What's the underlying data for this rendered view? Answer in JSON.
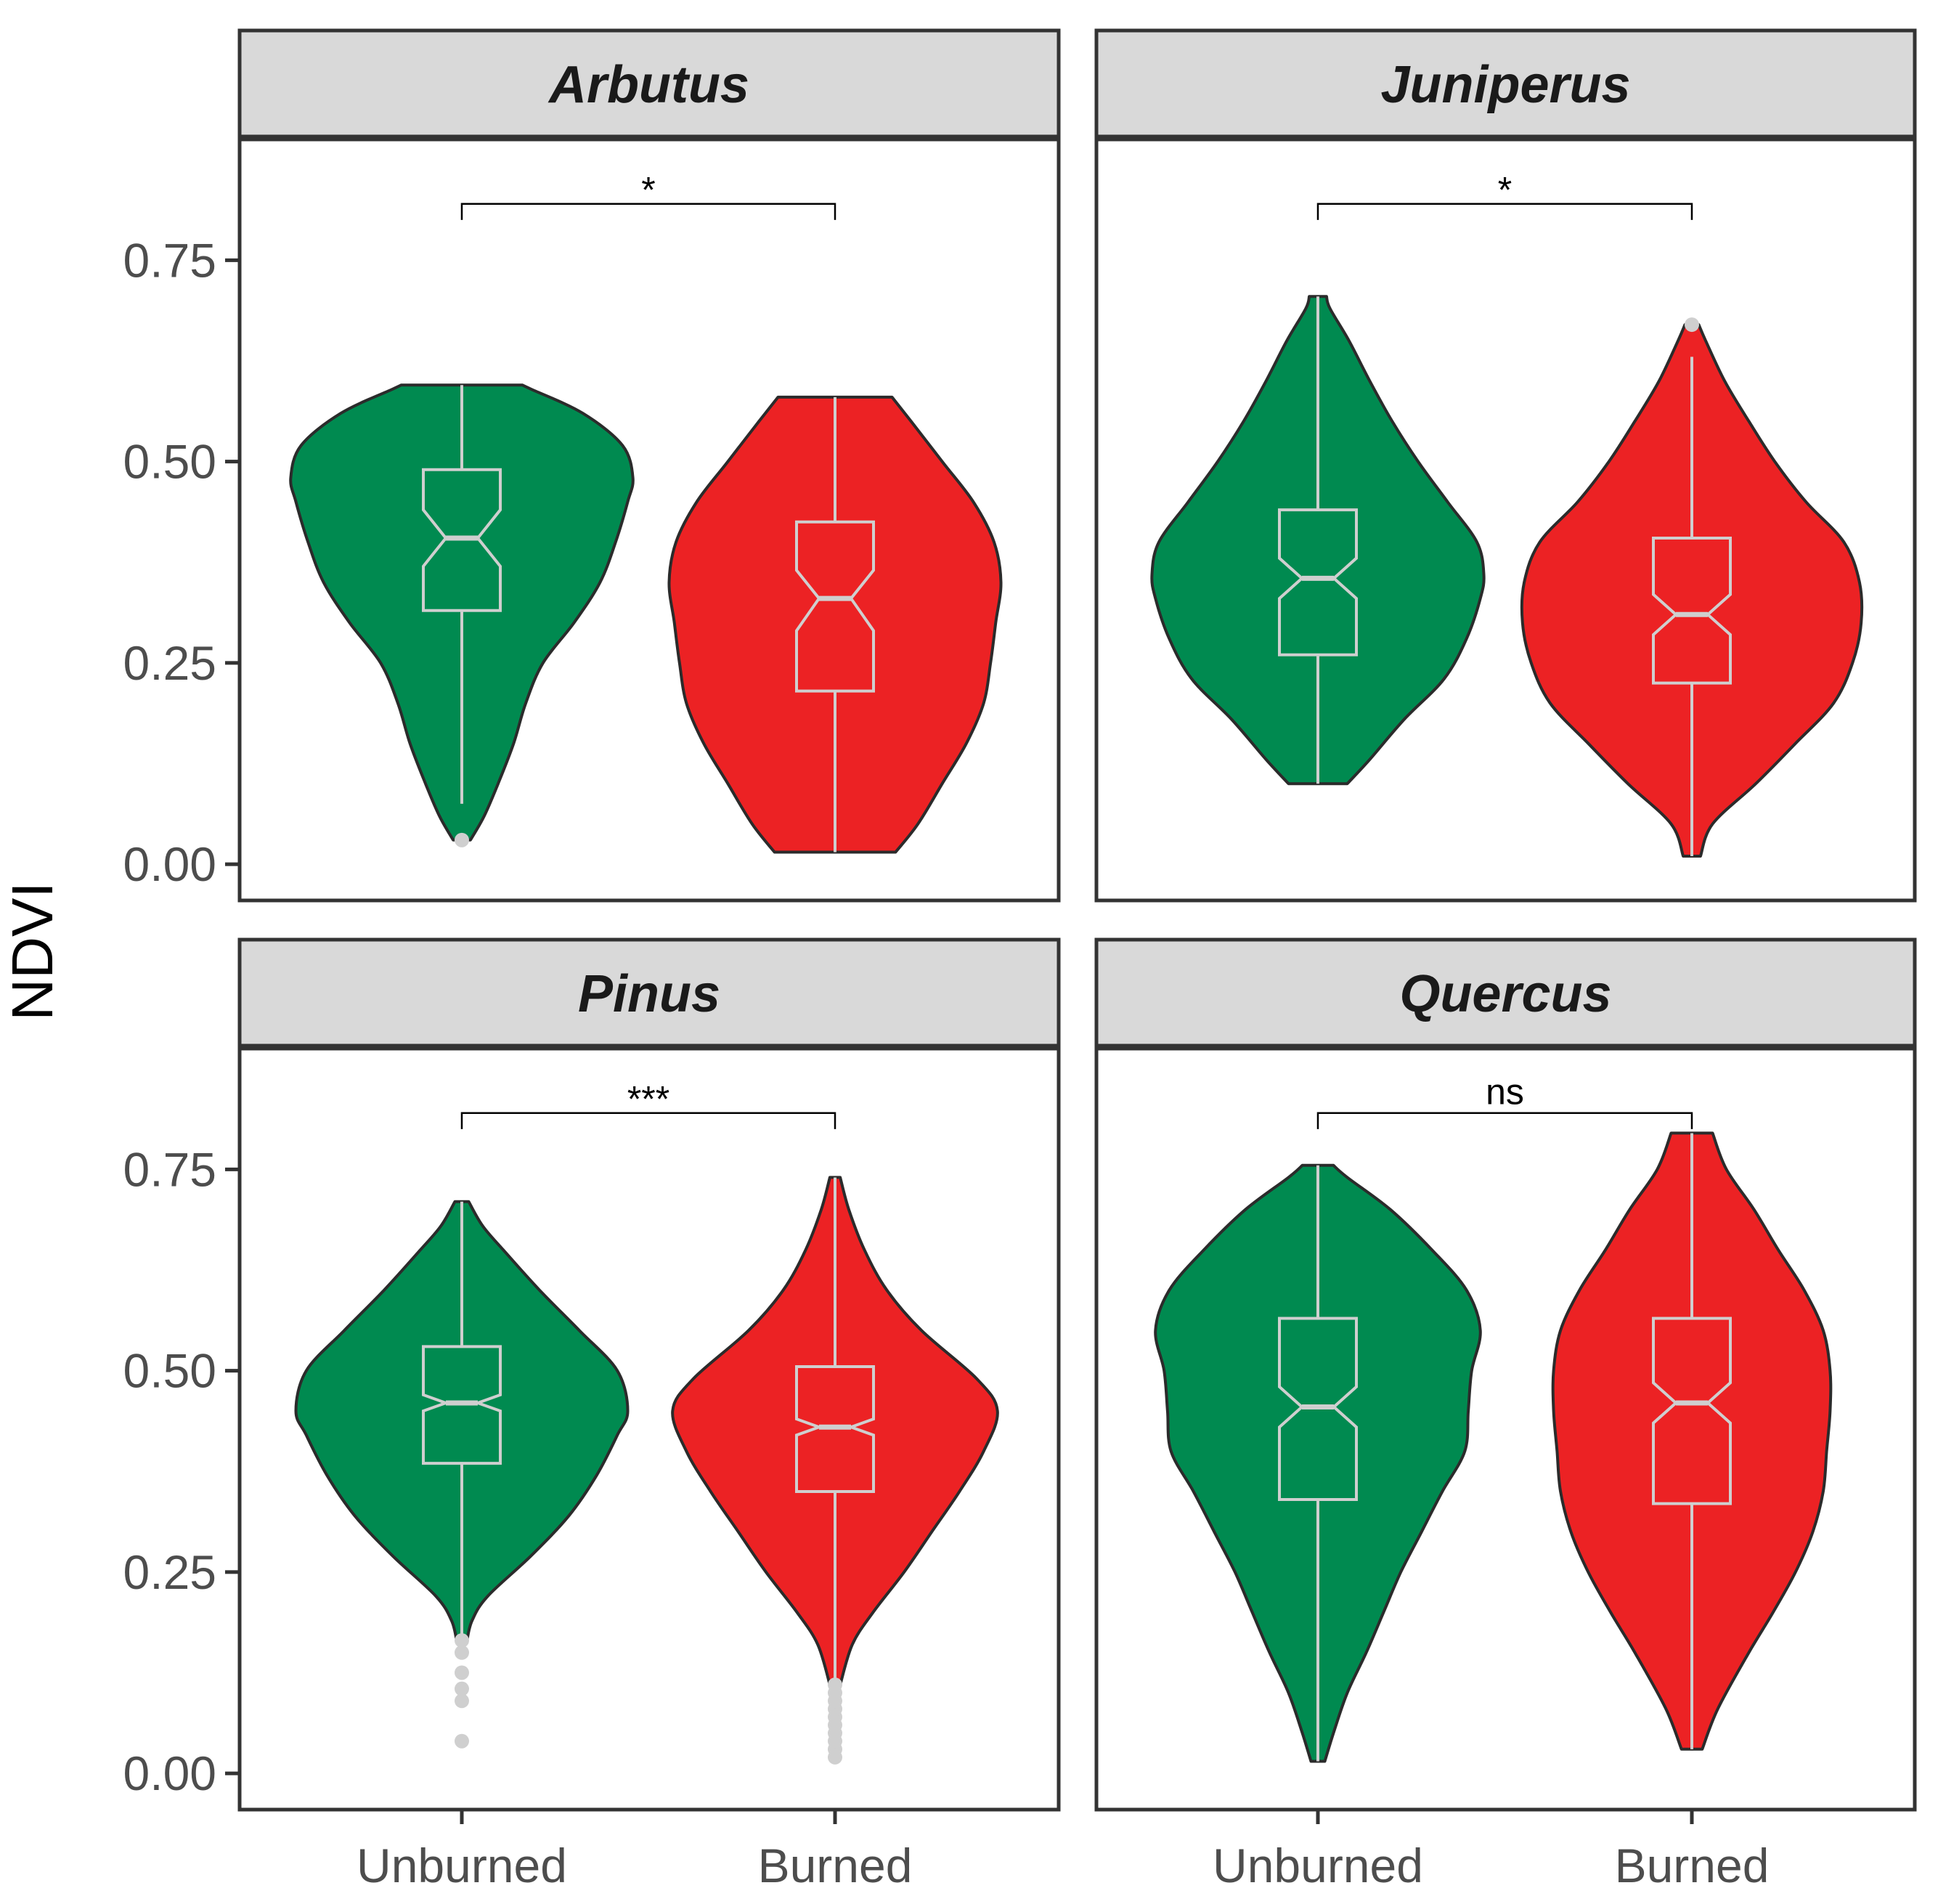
{
  "chart_data": {
    "type": "violin",
    "ylabel": "NDVI",
    "xlabel": "",
    "ylim": [
      -0.045,
      0.9
    ],
    "yticks": [
      0.0,
      0.25,
      0.5,
      0.75
    ],
    "ytick_labels": [
      "0.00",
      "0.25",
      "0.50",
      "0.75"
    ],
    "categories": [
      "Unburned",
      "Burned"
    ],
    "colors": {
      "Unburned": "#008a50",
      "Burned": "#ec2224",
      "box": "#cfcfcf",
      "outline": "#2b2b2b",
      "strip_bg": "#d9d9d9"
    },
    "panels": [
      {
        "title": "Arbutus",
        "significance": "*",
        "groups": [
          {
            "name": "Unburned",
            "min": 0.03,
            "max": 0.595,
            "box": {
              "q1": 0.315,
              "median": 0.405,
              "q3": 0.49,
              "notch_low": 0.37,
              "notch_high": 0.44,
              "whisker_low": 0.075,
              "whisker_high": 0.595
            },
            "outliers": [
              0.03
            ],
            "profile": [
              [
                0.03,
                0.05
              ],
              [
                0.06,
                0.13
              ],
              [
                0.1,
                0.21
              ],
              [
                0.15,
                0.3
              ],
              [
                0.2,
                0.37
              ],
              [
                0.25,
                0.47
              ],
              [
                0.3,
                0.65
              ],
              [
                0.35,
                0.8
              ],
              [
                0.4,
                0.89
              ],
              [
                0.45,
                0.96
              ],
              [
                0.48,
                0.99
              ],
              [
                0.52,
                0.93
              ],
              [
                0.56,
                0.7
              ],
              [
                0.59,
                0.4
              ],
              [
                0.595,
                0.35
              ]
            ]
          },
          {
            "name": "Burned",
            "min": 0.015,
            "max": 0.58,
            "box": {
              "q1": 0.215,
              "median": 0.33,
              "q3": 0.425,
              "notch_low": 0.29,
              "notch_high": 0.365,
              "whisker_low": 0.015,
              "whisker_high": 0.58
            },
            "outliers": [],
            "profile": [
              [
                0.015,
                0.35
              ],
              [
                0.05,
                0.48
              ],
              [
                0.1,
                0.62
              ],
              [
                0.15,
                0.76
              ],
              [
                0.2,
                0.86
              ],
              [
                0.25,
                0.9
              ],
              [
                0.3,
                0.93
              ],
              [
                0.35,
                0.96
              ],
              [
                0.4,
                0.92
              ],
              [
                0.45,
                0.8
              ],
              [
                0.5,
                0.62
              ],
              [
                0.55,
                0.44
              ],
              [
                0.58,
                0.33
              ]
            ]
          }
        ]
      },
      {
        "title": "Juniperus",
        "significance": "*",
        "groups": [
          {
            "name": "Unburned",
            "min": 0.1,
            "max": 0.705,
            "box": {
              "q1": 0.26,
              "median": 0.355,
              "q3": 0.44,
              "notch_low": 0.33,
              "notch_high": 0.38,
              "whisker_low": 0.1,
              "whisker_high": 0.705
            },
            "outliers": [],
            "profile": [
              [
                0.1,
                0.17
              ],
              [
                0.13,
                0.3
              ],
              [
                0.18,
                0.5
              ],
              [
                0.23,
                0.73
              ],
              [
                0.28,
                0.86
              ],
              [
                0.33,
                0.94
              ],
              [
                0.36,
                0.96
              ],
              [
                0.4,
                0.92
              ],
              [
                0.45,
                0.75
              ],
              [
                0.5,
                0.58
              ],
              [
                0.55,
                0.43
              ],
              [
                0.6,
                0.3
              ],
              [
                0.65,
                0.18
              ],
              [
                0.69,
                0.07
              ],
              [
                0.705,
                0.05
              ]
            ]
          },
          {
            "name": "Burned",
            "min": 0.01,
            "max": 0.67,
            "box": {
              "q1": 0.225,
              "median": 0.31,
              "q3": 0.405,
              "notch_low": 0.285,
              "notch_high": 0.335,
              "whisker_low": 0.01,
              "whisker_high": 0.63
            },
            "outliers": [
              0.67
            ],
            "profile": [
              [
                0.01,
                0.05
              ],
              [
                0.05,
                0.12
              ],
              [
                0.1,
                0.37
              ],
              [
                0.15,
                0.6
              ],
              [
                0.2,
                0.82
              ],
              [
                0.25,
                0.93
              ],
              [
                0.3,
                0.98
              ],
              [
                0.35,
                0.97
              ],
              [
                0.4,
                0.88
              ],
              [
                0.45,
                0.66
              ],
              [
                0.5,
                0.48
              ],
              [
                0.55,
                0.33
              ],
              [
                0.6,
                0.19
              ],
              [
                0.65,
                0.08
              ],
              [
                0.67,
                0.04
              ]
            ]
          }
        ]
      },
      {
        "title": "Pinus",
        "significance": "***",
        "groups": [
          {
            "name": "Unburned",
            "min": 0.04,
            "max": 0.71,
            "box": {
              "q1": 0.385,
              "median": 0.46,
              "q3": 0.53,
              "notch_low": 0.45,
              "notch_high": 0.47,
              "whisker_low": 0.16,
              "whisker_high": 0.71
            },
            "outliers": [
              0.04,
              0.09,
              0.105,
              0.125,
              0.15,
              0.165
            ],
            "profile": [
              [
                0.165,
                0.03
              ],
              [
                0.19,
                0.06
              ],
              [
                0.22,
                0.15
              ],
              [
                0.27,
                0.4
              ],
              [
                0.32,
                0.62
              ],
              [
                0.37,
                0.78
              ],
              [
                0.42,
                0.9
              ],
              [
                0.45,
                0.96
              ],
              [
                0.5,
                0.9
              ],
              [
                0.55,
                0.68
              ],
              [
                0.6,
                0.45
              ],
              [
                0.65,
                0.24
              ],
              [
                0.68,
                0.12
              ],
              [
                0.71,
                0.04
              ]
            ]
          },
          {
            "name": "Burned",
            "min": 0.02,
            "max": 0.74,
            "box": {
              "q1": 0.35,
              "median": 0.43,
              "q3": 0.505,
              "notch_low": 0.42,
              "notch_high": 0.44,
              "whisker_low": 0.11,
              "whisker_high": 0.74
            },
            "outliers": [
              0.02,
              0.03,
              0.04,
              0.05,
              0.06,
              0.07,
              0.08,
              0.09,
              0.1,
              0.11
            ],
            "profile": [
              [
                0.11,
                0.03
              ],
              [
                0.16,
                0.1
              ],
              [
                0.2,
                0.22
              ],
              [
                0.25,
                0.4
              ],
              [
                0.3,
                0.56
              ],
              [
                0.35,
                0.72
              ],
              [
                0.4,
                0.86
              ],
              [
                0.45,
                0.94
              ],
              [
                0.49,
                0.82
              ],
              [
                0.55,
                0.5
              ],
              [
                0.6,
                0.3
              ],
              [
                0.65,
                0.17
              ],
              [
                0.7,
                0.08
              ],
              [
                0.74,
                0.03
              ]
            ]
          }
        ]
      },
      {
        "title": "Quercus",
        "significance": "ns",
        "groups": [
          {
            "name": "Unburned",
            "min": 0.015,
            "max": 0.755,
            "box": {
              "q1": 0.34,
              "median": 0.455,
              "q3": 0.565,
              "notch_low": 0.43,
              "notch_high": 0.48,
              "whisker_low": 0.015,
              "whisker_high": 0.755
            },
            "outliers": [],
            "profile": [
              [
                0.015,
                0.04
              ],
              [
                0.05,
                0.09
              ],
              [
                0.1,
                0.17
              ],
              [
                0.15,
                0.28
              ],
              [
                0.2,
                0.38
              ],
              [
                0.25,
                0.48
              ],
              [
                0.3,
                0.6
              ],
              [
                0.35,
                0.72
              ],
              [
                0.4,
                0.85
              ],
              [
                0.45,
                0.87
              ],
              [
                0.5,
                0.89
              ],
              [
                0.55,
                0.94
              ],
              [
                0.6,
                0.86
              ],
              [
                0.65,
                0.66
              ],
              [
                0.7,
                0.42
              ],
              [
                0.74,
                0.17
              ],
              [
                0.755,
                0.09
              ]
            ]
          },
          {
            "name": "Burned",
            "min": 0.03,
            "max": 0.795,
            "box": {
              "q1": 0.335,
              "median": 0.46,
              "q3": 0.565,
              "notch_low": 0.435,
              "notch_high": 0.485,
              "whisker_low": 0.03,
              "whisker_high": 0.795
            },
            "outliers": [],
            "profile": [
              [
                0.03,
                0.06
              ],
              [
                0.08,
                0.15
              ],
              [
                0.15,
                0.33
              ],
              [
                0.2,
                0.47
              ],
              [
                0.25,
                0.6
              ],
              [
                0.3,
                0.7
              ],
              [
                0.35,
                0.76
              ],
              [
                0.4,
                0.78
              ],
              [
                0.45,
                0.8
              ],
              [
                0.5,
                0.8
              ],
              [
                0.55,
                0.76
              ],
              [
                0.6,
                0.65
              ],
              [
                0.65,
                0.5
              ],
              [
                0.7,
                0.36
              ],
              [
                0.75,
                0.2
              ],
              [
                0.795,
                0.12
              ]
            ]
          }
        ]
      }
    ]
  }
}
